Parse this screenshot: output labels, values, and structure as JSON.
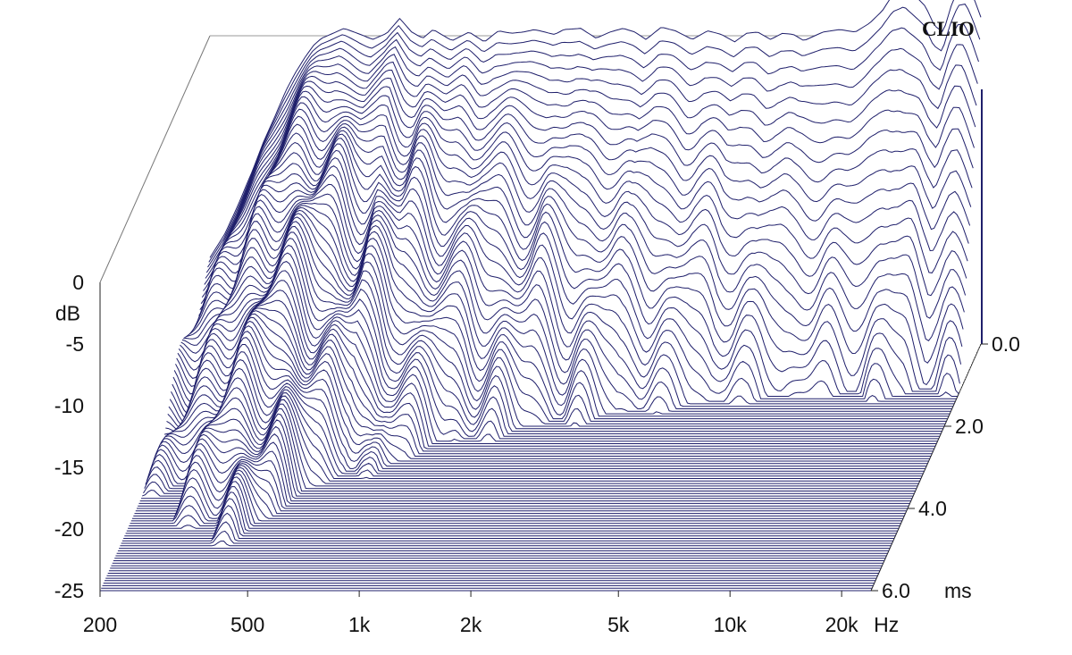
{
  "brand": "CLIO",
  "chart_data": {
    "type": "waterfall",
    "description_unit_x": "Hz",
    "x_ticks": [
      200,
      500,
      1000,
      2000,
      5000,
      10000,
      20000
    ],
    "x_tick_labels": [
      "200",
      "500",
      "1k",
      "2k",
      "5k",
      "10k",
      "20k"
    ],
    "x_unit": "Hz",
    "xlim": [
      200,
      24000
    ],
    "x_scale": "log",
    "y_ticks": [
      0,
      -5,
      -10,
      -15,
      -20,
      -25
    ],
    "y_tick_labels": [
      "0",
      "-5",
      "-10",
      "-15",
      "-20",
      "-25"
    ],
    "y_unit": "dB",
    "ylim": [
      -25,
      0
    ],
    "z_ticks": [
      0.0,
      2.0,
      4.0,
      6.0
    ],
    "z_tick_labels": [
      "0.0",
      "2.0",
      "4.0",
      "6.0"
    ],
    "z_unit": "ms",
    "zlim": [
      0,
      6
    ],
    "slice_count": 100,
    "line_color": "#1f1f6b",
    "initial_response": {
      "freq_hz": [
        200,
        220,
        240,
        260,
        280,
        300,
        320,
        340,
        360,
        380,
        400,
        430,
        460,
        500,
        550,
        600,
        650,
        700,
        750,
        800,
        900,
        1000,
        1100,
        1200,
        1300,
        1400,
        1500,
        1600,
        1700,
        1800,
        2000,
        2200,
        2400,
        2600,
        2800,
        3000,
        3300,
        3600,
        4000,
        4400,
        4800,
        5200,
        5600,
        6000,
        6500,
        7000,
        7500,
        8000,
        9000,
        10000,
        11000,
        12000,
        13000,
        14000,
        15000,
        16000,
        17000,
        18000,
        19000,
        20000,
        21000,
        22000,
        23000,
        24000
      ],
      "level_db": [
        -18,
        -16,
        -13.5,
        -11,
        -8.5,
        -6.5,
        -4.5,
        -3,
        -1.8,
        -0.8,
        -0.2,
        0.2,
        0.6,
        0.2,
        -0.3,
        0.2,
        1.4,
        0.3,
        -0.2,
        0.5,
        -0.4,
        0.3,
        -0.5,
        0.4,
        0.2,
        0.3,
        0.5,
        0.3,
        0.1,
        0.5,
        0.6,
        -0.2,
        0.3,
        0.6,
        0.3,
        -0.3,
        0.7,
        0.4,
        -0.3,
        0.4,
        0.1,
        -0.5,
        0.2,
        0.3,
        -0.3,
        0.2,
        0.1,
        -0.4,
        0.3,
        0.5,
        0.3,
        1.0,
        2.0,
        3.5,
        4.0,
        3.2,
        2.4,
        0.8,
        0.3,
        2.5,
        4.0,
        4.2,
        3.0,
        1.5
      ]
    }
  }
}
